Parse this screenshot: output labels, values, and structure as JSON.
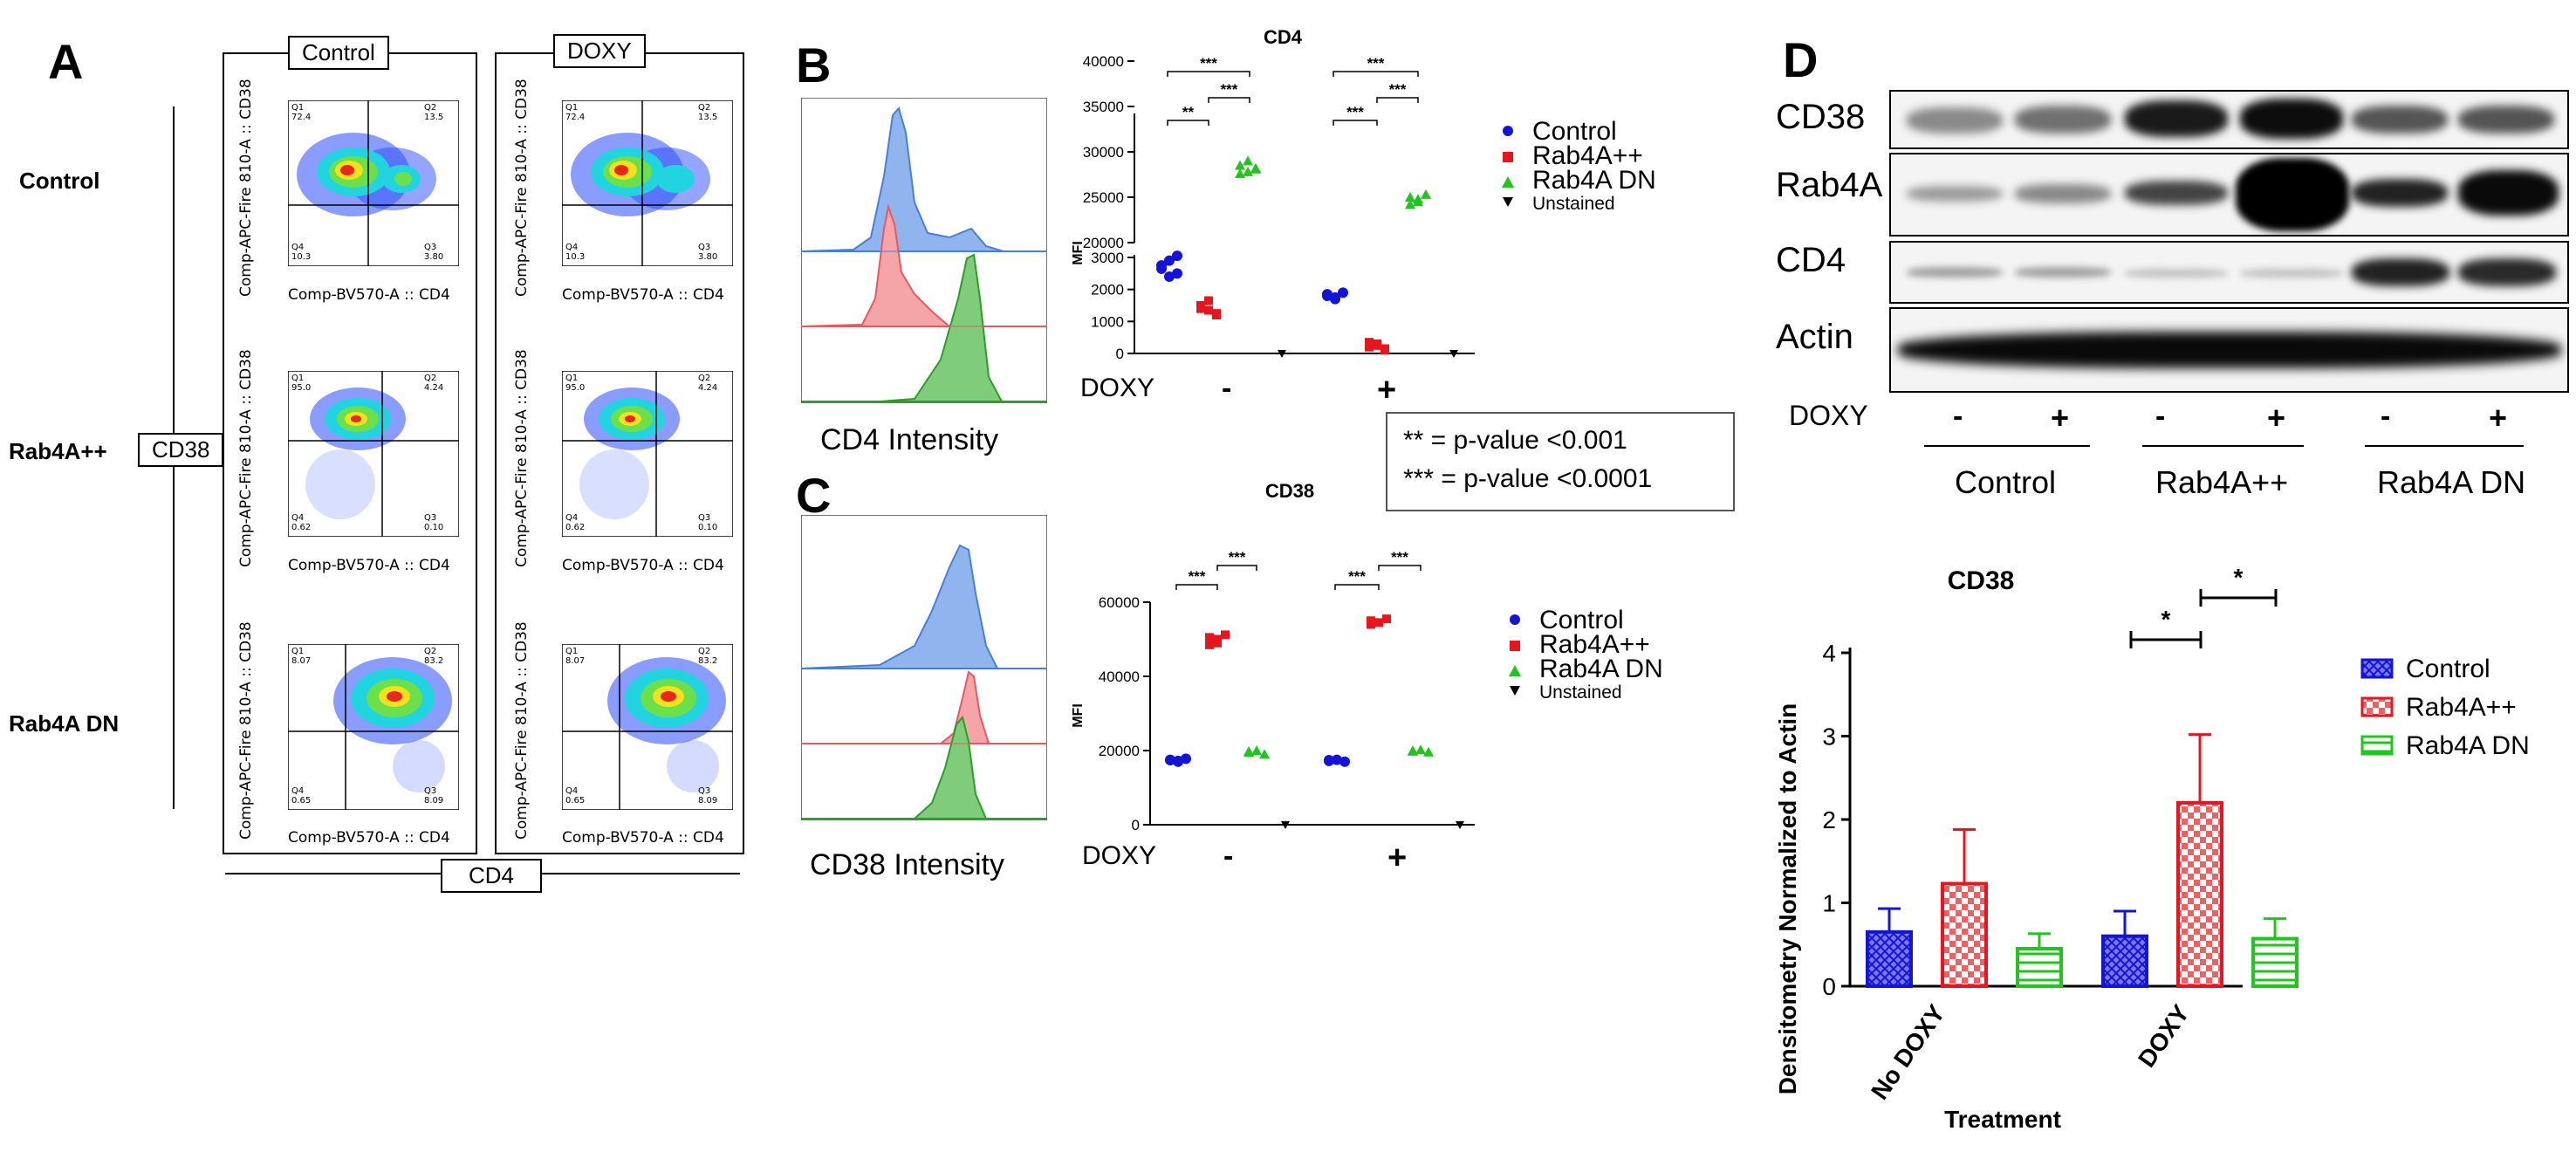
{
  "panels": {
    "a": "A",
    "b": "B",
    "c": "C",
    "d": "D"
  },
  "panel_a": {
    "columns": [
      "Control",
      "DOXY"
    ],
    "rows": [
      "Control",
      "Rab4A++",
      "Rab4A DN"
    ],
    "y_box": "CD38",
    "x_box": "CD4",
    "y_axis_label": "Comp-APC-Fire 810-A :: CD38",
    "x_axis_label": "Comp-BV570-A :: CD4",
    "quadrants": [
      {
        "q1": "Q1\n72.4",
        "q2": "Q2\n13.5",
        "q3": "Q3\n3.80",
        "q4": "Q4\n10.3"
      },
      {
        "q1": "Q1\n95.0",
        "q2": "Q2\n4.24",
        "q3": "Q3\n0.10",
        "q4": "Q4\n0.62"
      },
      {
        "q1": "Q1\n8.07",
        "q2": "Q2\n83.2",
        "q3": "Q3\n8.09",
        "q4": "Q4\n0.65"
      }
    ]
  },
  "panel_b": {
    "hist_xlabel": "CD4 Intensity",
    "title": "CD4",
    "ylabel": "MFI",
    "doxy_label": "DOXY",
    "minus": "-",
    "plus": "+",
    "yticks_top": [
      "40000",
      "35000",
      "30000",
      "25000",
      "20000"
    ],
    "yticks_bottom": [
      "3000",
      "2000",
      "1000",
      "0"
    ],
    "sig": [
      "***",
      "**",
      "***",
      "***",
      "***",
      "***"
    ]
  },
  "pvalue_box": {
    "line1": "** = p-value <0.001",
    "line2": "*** = p-value <0.0001"
  },
  "panel_c": {
    "hist_xlabel": "CD38 Intensity",
    "title": "CD38",
    "ylabel": "MFI",
    "doxy_label": "DOXY",
    "minus": "-",
    "plus": "+",
    "yticks": [
      "60000",
      "40000",
      "20000",
      "0"
    ],
    "sig": [
      "***",
      "***",
      "***",
      "***"
    ]
  },
  "scatter_legend": [
    "Control",
    "Rab4A++",
    "Rab4A DN",
    "Unstained"
  ],
  "colors": {
    "control": "#1414d8",
    "rab4a": "#e8141e",
    "dn": "#22c41e",
    "unstained": "#000000"
  },
  "western": {
    "bands": [
      "CD38",
      "Rab4A",
      "CD4",
      "Actin"
    ],
    "doxy_label": "DOXY",
    "signs": [
      "-",
      "+",
      "-",
      "+",
      "-",
      "+"
    ],
    "groups": [
      "Control",
      "Rab4A++",
      "Rab4A DN"
    ]
  },
  "chart_data": {
    "type": "bar",
    "title": "CD38",
    "xlabel": "Treatment",
    "ylabel": "Densitometry Normalized to Actin",
    "categories": [
      "No DOXY",
      "DOXY"
    ],
    "ylim": [
      0,
      4
    ],
    "yticks": [
      "0",
      "1",
      "2",
      "3",
      "4"
    ],
    "series": [
      {
        "name": "Control",
        "values": [
          0.65,
          0.6
        ],
        "errors": [
          0.28,
          0.3
        ]
      },
      {
        "name": "Rab4A++",
        "values": [
          1.23,
          2.2
        ],
        "errors": [
          0.65,
          0.82
        ]
      },
      {
        "name": "Rab4A DN",
        "values": [
          0.45,
          0.57
        ],
        "errors": [
          0.18,
          0.24
        ]
      }
    ],
    "significance": [
      "*",
      "*"
    ],
    "legend_position": "right"
  }
}
